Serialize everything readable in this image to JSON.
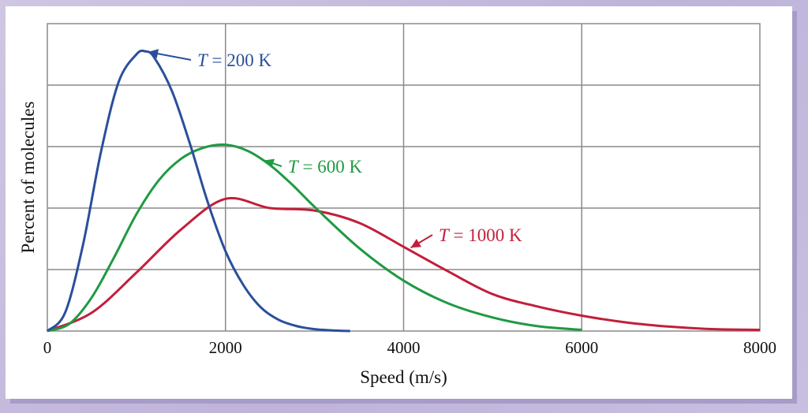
{
  "chart_data": {
    "type": "line",
    "title": "",
    "xlabel": "Speed (m/s)",
    "ylabel": "Percent of molecules",
    "xlim": [
      0,
      8000
    ],
    "ylim": [
      0,
      5
    ],
    "x_ticks": [
      "0",
      "2000",
      "4000",
      "6000",
      "8000"
    ],
    "y_ticks": [],
    "grid": true,
    "series": [
      {
        "name": "T = 200 K",
        "label_var": "T",
        "label_rest": " = 200 K",
        "color": "#2a4f9a",
        "x": [
          0,
          200,
          400,
          600,
          800,
          1000,
          1100,
          1200,
          1400,
          1600,
          1800,
          2000,
          2200,
          2400,
          2600,
          2800,
          3000,
          3200,
          3400
        ],
        "values": [
          0,
          0.3,
          1.4,
          2.9,
          4.05,
          4.5,
          4.55,
          4.45,
          3.9,
          3.05,
          2.1,
          1.3,
          0.75,
          0.38,
          0.18,
          0.08,
          0.03,
          0.01,
          0
        ]
      },
      {
        "name": "T = 600 K",
        "label_var": "T",
        "label_rest": " = 600 K",
        "color": "#1f9a43",
        "x": [
          0,
          250,
          500,
          750,
          1000,
          1250,
          1500,
          1750,
          2000,
          2250,
          2500,
          2750,
          3000,
          3500,
          4000,
          4500,
          5000,
          5500,
          6000
        ],
        "values": [
          0,
          0.12,
          0.55,
          1.2,
          1.9,
          2.45,
          2.8,
          2.98,
          3.03,
          2.93,
          2.7,
          2.38,
          2.02,
          1.35,
          0.82,
          0.45,
          0.22,
          0.08,
          0.02
        ]
      },
      {
        "name": "T = 1000 K",
        "label_var": "T",
        "label_rest": " = 1000 K",
        "color": "#c21f3a",
        "x": [
          0,
          500,
          1000,
          1500,
          2000,
          2500,
          3000,
          3500,
          4000,
          4500,
          5000,
          5500,
          6000,
          6500,
          7000,
          7500,
          8000
        ],
        "values": [
          0,
          0.3,
          0.95,
          1.65,
          2.15,
          2.0,
          1.96,
          1.76,
          1.37,
          0.97,
          0.6,
          0.4,
          0.25,
          0.14,
          0.07,
          0.03,
          0.02
        ]
      }
    ],
    "annotations": [
      {
        "series": 0,
        "at_x": 1100
      },
      {
        "series": 1,
        "at_x": 2400
      },
      {
        "series": 2,
        "at_x": 4050
      }
    ]
  }
}
